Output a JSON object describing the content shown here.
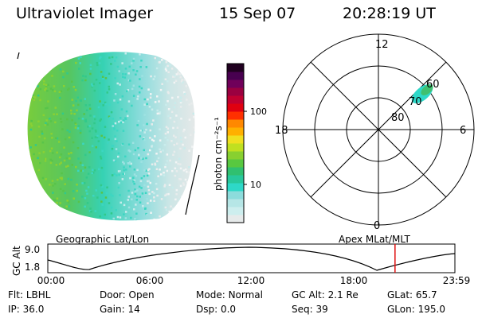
{
  "header": {
    "instrument": "Ultraviolet Imager",
    "date": "15 Sep 07",
    "time": "20:28:19 UT"
  },
  "colorbar": {
    "label": "photon cm⁻²s⁻¹",
    "ticks": [
      {
        "value": 100,
        "label": "100"
      },
      {
        "value": 10,
        "label": "10"
      }
    ],
    "scale": "log",
    "range": [
      3,
      450
    ],
    "colors": [
      "#e6eaea",
      "#cdeeee",
      "#b6e6e6",
      "#8cdcdc",
      "#2ed8c8",
      "#28c89c",
      "#30c070",
      "#58c840",
      "#88d030",
      "#c0e020",
      "#f0e020",
      "#ffb000",
      "#ff8800",
      "#ff3000",
      "#e00010",
      "#c00030",
      "#9a0040",
      "#70005a",
      "#480050",
      "#200020"
    ]
  },
  "polar_plot": {
    "hour_labels": {
      "top": "12",
      "left": "18",
      "right": "6",
      "bottom": "0"
    },
    "lat_labels": [
      "60",
      "70",
      "80"
    ]
  },
  "timeline": {
    "left_title": "Geographic Lat/Lon",
    "right_title": "Apex MLat/MLT",
    "axis_label": "GC Alt",
    "y_ticks": [
      "9.0",
      "1.8"
    ],
    "x_ticks": [
      "00:00",
      "06:00",
      "12:00",
      "18:00",
      "23:59"
    ],
    "current_time_hours": 20.47
  },
  "info": {
    "row1": [
      {
        "label": "Flt:",
        "value": "LBHL"
      },
      {
        "label": "Door:",
        "value": "Open"
      },
      {
        "label": "Mode:",
        "value": "Normal"
      },
      {
        "label": "GC Alt:",
        "value": "2.1 Re"
      },
      {
        "label": "GLat:",
        "value": "65.7"
      }
    ],
    "row2": [
      {
        "label": "IP:",
        "value": "36.0"
      },
      {
        "label": "Gain:",
        "value": "14"
      },
      {
        "label": "Dsp:",
        "value": "0.0"
      },
      {
        "label": "Seq:",
        "value": "39"
      },
      {
        "label": "GLon:",
        "value": "195.0"
      }
    ]
  }
}
